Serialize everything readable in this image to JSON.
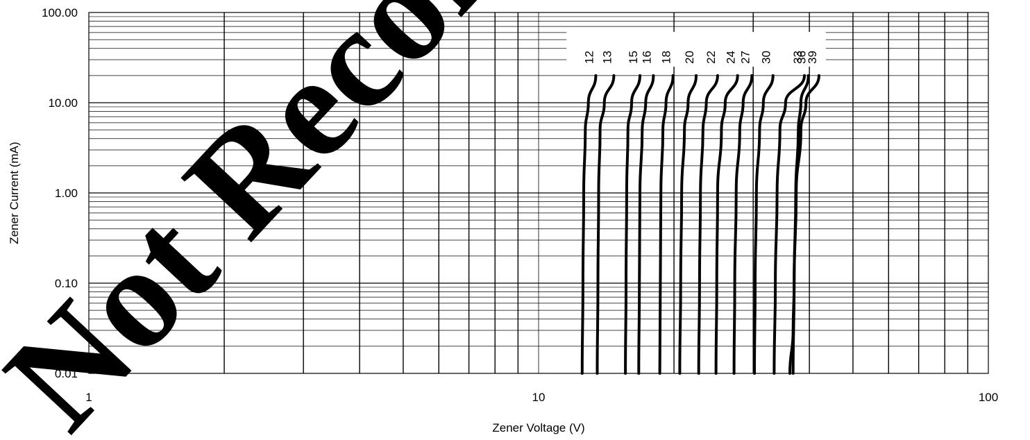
{
  "chart_data": {
    "type": "line",
    "title": "",
    "xlabel": "Zener Voltage (V)",
    "ylabel": "Zener Current (mA)",
    "x_scale": "log",
    "y_scale": "log",
    "xlim": [
      1,
      100
    ],
    "ylim": [
      0.01,
      100
    ],
    "grid": true,
    "x_tick_labels": [
      {
        "value": 1,
        "label": "1"
      },
      {
        "value": 10,
        "label": "10"
      },
      {
        "value": 100,
        "label": "100"
      }
    ],
    "y_tick_labels": [
      {
        "value": 0.01,
        "label": "0.01"
      },
      {
        "value": 0.1,
        "label": "0.10"
      },
      {
        "value": 1,
        "label": "1.00"
      },
      {
        "value": 10,
        "label": "10.00"
      },
      {
        "value": 100,
        "label": "100.00"
      }
    ],
    "series": [
      {
        "name": "12",
        "points": [
          [
            12.5,
            0.01
          ],
          [
            12.55,
            0.1
          ],
          [
            12.6,
            1
          ],
          [
            12.7,
            5
          ],
          [
            12.9,
            10
          ],
          [
            13.4,
            20
          ]
        ]
      },
      {
        "name": "13",
        "points": [
          [
            13.5,
            0.01
          ],
          [
            13.55,
            0.1
          ],
          [
            13.6,
            1
          ],
          [
            13.7,
            5
          ],
          [
            14.0,
            10
          ],
          [
            14.7,
            20
          ]
        ]
      },
      {
        "name": "15",
        "points": [
          [
            15.6,
            0.01
          ],
          [
            15.65,
            0.1
          ],
          [
            15.7,
            1
          ],
          [
            15.8,
            5
          ],
          [
            16.1,
            10
          ],
          [
            16.8,
            20
          ]
        ]
      },
      {
        "name": "16",
        "points": [
          [
            16.7,
            0.01
          ],
          [
            16.75,
            0.1
          ],
          [
            16.8,
            1
          ],
          [
            17.0,
            5
          ],
          [
            17.3,
            10
          ],
          [
            18.0,
            20
          ]
        ]
      },
      {
        "name": "18",
        "points": [
          [
            18.6,
            0.01
          ],
          [
            18.65,
            0.1
          ],
          [
            18.7,
            1
          ],
          [
            18.9,
            5
          ],
          [
            19.2,
            10
          ],
          [
            19.9,
            20
          ]
        ]
      },
      {
        "name": "20",
        "points": [
          [
            20.6,
            0.01
          ],
          [
            20.7,
            0.1
          ],
          [
            20.8,
            1
          ],
          [
            21.1,
            5
          ],
          [
            21.5,
            10
          ],
          [
            22.4,
            20
          ]
        ]
      },
      {
        "name": "22",
        "points": [
          [
            22.7,
            0.01
          ],
          [
            22.8,
            0.1
          ],
          [
            22.9,
            1
          ],
          [
            23.2,
            5
          ],
          [
            23.6,
            10
          ],
          [
            25.0,
            20
          ]
        ]
      },
      {
        "name": "24",
        "points": [
          [
            24.8,
            0.01
          ],
          [
            24.9,
            0.1
          ],
          [
            25.0,
            1
          ],
          [
            25.5,
            5
          ],
          [
            26.0,
            10
          ],
          [
            27.7,
            20
          ]
        ]
      },
      {
        "name": "27",
        "points": [
          [
            27.2,
            0.01
          ],
          [
            27.3,
            0.1
          ],
          [
            27.5,
            1
          ],
          [
            28.0,
            5
          ],
          [
            28.5,
            10
          ],
          [
            29.8,
            20
          ]
        ]
      },
      {
        "name": "30",
        "points": [
          [
            30.2,
            0.01
          ],
          [
            30.3,
            0.1
          ],
          [
            30.5,
            1
          ],
          [
            31.0,
            5
          ],
          [
            31.6,
            10
          ],
          [
            33.2,
            20
          ]
        ]
      },
      {
        "name": "33",
        "points": [
          [
            33.4,
            0.01
          ],
          [
            33.6,
            0.1
          ],
          [
            33.9,
            1
          ],
          [
            34.4,
            5
          ],
          [
            35.4,
            10
          ],
          [
            39.0,
            20
          ]
        ]
      },
      {
        "name": "36",
        "points": [
          [
            36.8,
            0.01
          ],
          [
            37.0,
            0.1
          ],
          [
            37.3,
            1
          ],
          [
            37.8,
            5
          ],
          [
            38.3,
            10
          ],
          [
            39.8,
            20
          ]
        ]
      },
      {
        "name": "39",
        "points": [
          [
            36.2,
            0.01
          ],
          [
            36.8,
            0.03
          ],
          [
            37.0,
            0.1
          ],
          [
            37.4,
            1
          ],
          [
            38.3,
            5
          ],
          [
            39.3,
            10
          ],
          [
            42.0,
            20
          ]
        ]
      }
    ]
  },
  "watermark": {
    "text": "Not Recommended",
    "color": "#000000"
  }
}
